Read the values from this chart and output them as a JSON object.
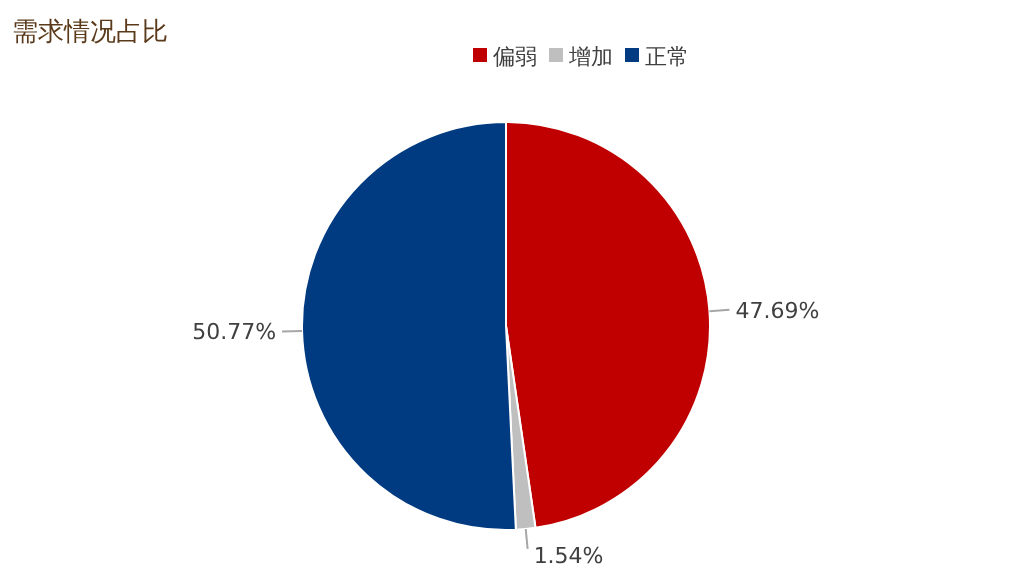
{
  "chart_data": {
    "type": "pie",
    "title": "需求情况占比",
    "categories": [
      "偏弱",
      "增加",
      "正常"
    ],
    "values": [
      47.69,
      1.54,
      50.77
    ],
    "colors": [
      "#c00000",
      "#bfbfbf",
      "#003a80"
    ],
    "value_labels": [
      "47.69%",
      "1.54%",
      "50.77%"
    ],
    "legend": "top"
  }
}
